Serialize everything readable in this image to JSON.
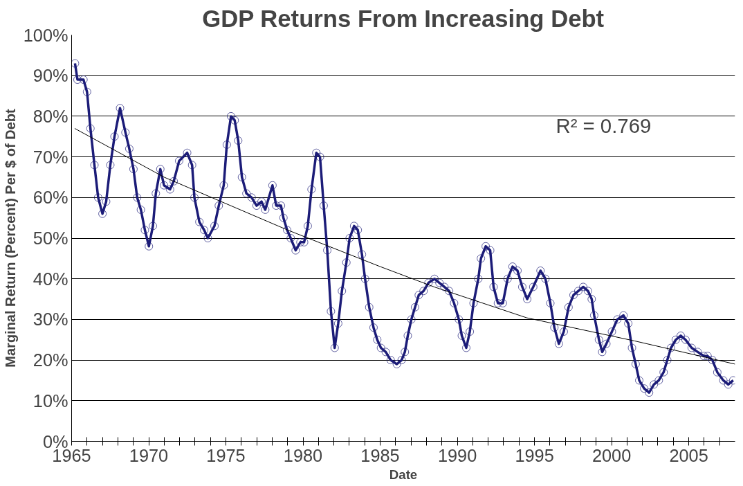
{
  "chart_data": {
    "type": "line",
    "title": "GDP Returns From Increasing Debt",
    "xlabel": "Date",
    "ylabel": "Marginal Return (Percent) Per $ of Debt",
    "annotations": [
      "R² = 0.769"
    ],
    "xlim": [
      1965,
      2008
    ],
    "ylim": [
      0,
      100
    ],
    "xticks": [
      1965,
      {
        "value": 1966,
        "label": null
      },
      {
        "value": 1967,
        "label": null
      },
      {
        "value": 1968,
        "label": null
      },
      {
        "value": 1969,
        "label": null
      },
      1970,
      {
        "value": 1971,
        "label": null
      },
      {
        "value": 1972,
        "label": null
      },
      {
        "value": 1973,
        "label": null
      },
      {
        "value": 1974,
        "label": null
      },
      1975,
      {
        "value": 1976,
        "label": null
      },
      {
        "value": 1977,
        "label": null
      },
      {
        "value": 1978,
        "label": null
      },
      {
        "value": 1979,
        "label": null
      },
      1980,
      {
        "value": 1981,
        "label": null
      },
      {
        "value": 1982,
        "label": null
      },
      {
        "value": 1983,
        "label": null
      },
      {
        "value": 1984,
        "label": null
      },
      1985,
      {
        "value": 1986,
        "label": null
      },
      {
        "value": 1987,
        "label": null
      },
      {
        "value": 1988,
        "label": null
      },
      {
        "value": 1989,
        "label": null
      },
      1990,
      {
        "value": 1991,
        "label": null
      },
      {
        "value": 1992,
        "label": null
      },
      {
        "value": 1993,
        "label": null
      },
      {
        "value": 1994,
        "label": null
      },
      1995,
      {
        "value": 1996,
        "label": null
      },
      {
        "value": 1997,
        "label": null
      },
      {
        "value": 1998,
        "label": null
      },
      {
        "value": 1999,
        "label": null
      },
      2000,
      {
        "value": 2001,
        "label": null
      },
      {
        "value": 2002,
        "label": null
      },
      {
        "value": 2003,
        "label": null
      },
      {
        "value": 2004,
        "label": null
      },
      2005,
      {
        "value": 2006,
        "label": null
      },
      {
        "value": 2007,
        "label": null
      }
    ],
    "yticks": [
      {
        "value": 0,
        "label": "0%"
      },
      {
        "value": 10,
        "label": "10%"
      },
      {
        "value": 20,
        "label": "20%"
      },
      {
        "value": 30,
        "label": "30%"
      },
      {
        "value": 40,
        "label": "40%"
      },
      {
        "value": 50,
        "label": "50%"
      },
      {
        "value": 60,
        "label": "60%"
      },
      {
        "value": 70,
        "label": "70%"
      },
      {
        "value": 80,
        "label": "80%"
      },
      {
        "value": 90,
        "label": "90%"
      },
      {
        "value": 100,
        "label": "100%"
      }
    ],
    "grid": "y",
    "series": [
      {
        "color": "#1c1c78",
        "marker": "circle",
        "x": [
          1965.22,
          1965.38,
          1965.77,
          1966.0,
          1966.22,
          1966.48,
          1966.72,
          1967.0,
          1967.24,
          1967.51,
          1967.78,
          1968.14,
          1968.49,
          1968.74,
          1969.01,
          1969.25,
          1969.49,
          1969.75,
          1970.01,
          1970.27,
          1970.46,
          1970.75,
          1970.99,
          1971.38,
          1971.62,
          1971.97,
          1972.49,
          1972.81,
          1972.96,
          1973.28,
          1973.59,
          1973.83,
          1974.26,
          1974.54,
          1974.86,
          1975.06,
          1975.33,
          1975.57,
          1975.8,
          1976.04,
          1976.33,
          1976.67,
          1976.99,
          1977.31,
          1977.55,
          1978.02,
          1978.26,
          1978.57,
          1978.73,
          1978.97,
          1979.2,
          1979.52,
          1979.83,
          1980.07,
          1980.31,
          1980.55,
          1980.86,
          1981.1,
          1981.34,
          1981.57,
          1981.81,
          1982.05,
          1982.28,
          1982.52,
          1982.81,
          1983.02,
          1983.31,
          1983.55,
          1983.82,
          1984.02,
          1984.29,
          1984.57,
          1984.81,
          1985.05,
          1985.36,
          1985.68,
          1986.08,
          1986.39,
          1986.6,
          1986.79,
          1987.02,
          1987.26,
          1987.5,
          1987.81,
          1988.13,
          1988.52,
          1988.84,
          1989.16,
          1989.47,
          1989.79,
          1990.1,
          1990.29,
          1990.58,
          1990.81,
          1991.05,
          1991.36,
          1991.53,
          1991.84,
          1992.13,
          1992.35,
          1992.63,
          1992.95,
          1993.26,
          1993.58,
          1993.9,
          1994.21,
          1994.53,
          1994.92,
          1995.39,
          1995.71,
          1996.03,
          1996.29,
          1996.58,
          1996.9,
          1997.21,
          1997.53,
          1997.84,
          1998.16,
          1998.47,
          1998.71,
          1998.87,
          1999.18,
          1999.39,
          1999.66,
          2000.02,
          2000.37,
          2000.77,
          2001.08,
          2001.32,
          2001.56,
          2001.79,
          2002.11,
          2002.43,
          2002.74,
          2003.06,
          2003.37,
          2003.61,
          2003.85,
          2004.16,
          2004.48,
          2004.79,
          2005.19,
          2005.58,
          2005.98,
          2006.22,
          2006.53,
          2006.85,
          2007.24,
          2007.56,
          2007.88
        ],
        "values": [
          93,
          89,
          89,
          86,
          77,
          68,
          60,
          56,
          59,
          68,
          75,
          82,
          76,
          72,
          67,
          60,
          57,
          52,
          48,
          53,
          61,
          67,
          63,
          62,
          64,
          69,
          71,
          68,
          60,
          54,
          52,
          50,
          53,
          58,
          63,
          73,
          80,
          79,
          74,
          65,
          61,
          60,
          58,
          59,
          57,
          63,
          58,
          58,
          55,
          52,
          50,
          47,
          49,
          49,
          53,
          62,
          71,
          70,
          58,
          47,
          32,
          23,
          29,
          37,
          44,
          50,
          53,
          52,
          46,
          40,
          33,
          28,
          25,
          23,
          22,
          20,
          19,
          20,
          22,
          26,
          30,
          33,
          36,
          37,
          39,
          40,
          39,
          38,
          37,
          34,
          30,
          26,
          23,
          27,
          34,
          40,
          45,
          48,
          47,
          38,
          34,
          34,
          40,
          43,
          42,
          38,
          35,
          38,
          42,
          40,
          34,
          28,
          24,
          27,
          33,
          36,
          37,
          38,
          37,
          35,
          31,
          25,
          22,
          24,
          27,
          30,
          31,
          29,
          23,
          19,
          15,
          13,
          12,
          14,
          15,
          17,
          20,
          23,
          25,
          26,
          25,
          23,
          22,
          21,
          21,
          20,
          17,
          15,
          14,
          15
        ]
      },
      {
        "color": "#000000",
        "marker": "none",
        "x": [
          1965.2,
          1971,
          1979,
          1985,
          1988.5,
          1994.5,
          2001.5,
          2008
        ],
        "values": [
          77,
          65,
          52,
          43,
          38,
          30.4,
          24.7,
          19
        ]
      }
    ]
  }
}
